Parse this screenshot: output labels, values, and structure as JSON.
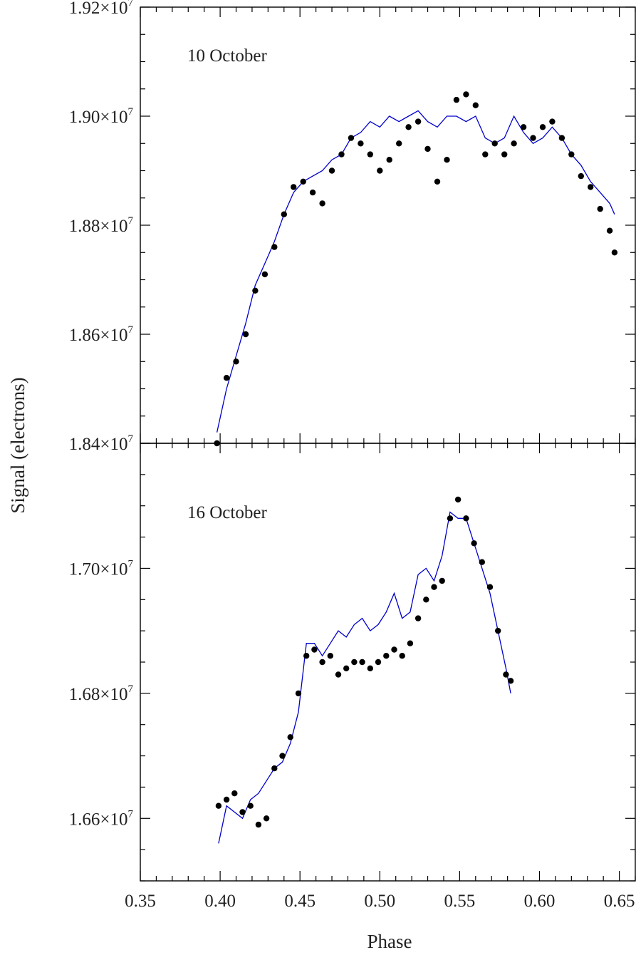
{
  "chart_data": [
    {
      "type": "scatter",
      "panel_label": "10 October",
      "xlabel": "Phase",
      "ylabel": "Signal (electrons)",
      "xlim": [
        0.35,
        0.66
      ],
      "ylim": [
        18400000,
        19200000
      ],
      "x_ticks": [
        0.35,
        0.4,
        0.45,
        0.5,
        0.55,
        0.6,
        0.65
      ],
      "y_ticks": [
        {
          "value": 18400000,
          "mantissa": "1.84",
          "exponent": "7"
        },
        {
          "value": 18600000,
          "mantissa": "1.86",
          "exponent": "7"
        },
        {
          "value": 18800000,
          "mantissa": "1.88",
          "exponent": "7"
        },
        {
          "value": 19000000,
          "mantissa": "1.90",
          "exponent": "7"
        },
        {
          "value": 19200000,
          "mantissa": "1.92",
          "exponent": "7"
        }
      ],
      "series": [
        {
          "kind": "points",
          "color": "#000000",
          "x": [
            0.398,
            0.404,
            0.41,
            0.416,
            0.422,
            0.428,
            0.434,
            0.44,
            0.446,
            0.452,
            0.458,
            0.464,
            0.47,
            0.476,
            0.482,
            0.488,
            0.494,
            0.5,
            0.506,
            0.512,
            0.518,
            0.524,
            0.53,
            0.536,
            0.542,
            0.548,
            0.554,
            0.56,
            0.566,
            0.572,
            0.578,
            0.584,
            0.59,
            0.596,
            0.602,
            0.608,
            0.614,
            0.62,
            0.626,
            0.632,
            0.638,
            0.644,
            0.647
          ],
          "y": [
            18400000,
            18520000,
            18550000,
            18600000,
            18680000,
            18710000,
            18760000,
            18820000,
            18870000,
            18880000,
            18860000,
            18840000,
            18900000,
            18930000,
            18960000,
            18950000,
            18930000,
            18900000,
            18920000,
            18950000,
            18980000,
            18990000,
            18940000,
            18880000,
            18920000,
            19030000,
            19040000,
            19020000,
            18930000,
            18950000,
            18930000,
            18950000,
            18980000,
            18960000,
            18980000,
            18990000,
            18960000,
            18930000,
            18890000,
            18870000,
            18830000,
            18790000,
            18750000
          ]
        },
        {
          "kind": "line",
          "color": "#0000cc",
          "x": [
            0.398,
            0.404,
            0.41,
            0.416,
            0.422,
            0.428,
            0.434,
            0.44,
            0.446,
            0.452,
            0.458,
            0.464,
            0.47,
            0.476,
            0.482,
            0.488,
            0.494,
            0.5,
            0.506,
            0.512,
            0.518,
            0.524,
            0.53,
            0.536,
            0.542,
            0.548,
            0.554,
            0.56,
            0.566,
            0.572,
            0.578,
            0.584,
            0.59,
            0.596,
            0.602,
            0.608,
            0.614,
            0.62,
            0.626,
            0.632,
            0.638,
            0.644,
            0.647
          ],
          "y": [
            18420000,
            18500000,
            18560000,
            18620000,
            18690000,
            18730000,
            18770000,
            18820000,
            18860000,
            18880000,
            18890000,
            18900000,
            18920000,
            18930000,
            18960000,
            18970000,
            18990000,
            18980000,
            19000000,
            18990000,
            19000000,
            19010000,
            18990000,
            18980000,
            19000000,
            19000000,
            18990000,
            19000000,
            18960000,
            18950000,
            18960000,
            19000000,
            18970000,
            18950000,
            18960000,
            18980000,
            18960000,
            18930000,
            18910000,
            18880000,
            18860000,
            18840000,
            18820000
          ]
        }
      ]
    },
    {
      "type": "scatter",
      "panel_label": "16 October",
      "xlabel": "Phase",
      "ylabel": "Signal (electrons)",
      "xlim": [
        0.35,
        0.66
      ],
      "ylim": [
        16500000,
        17200000
      ],
      "x_ticks": [
        0.35,
        0.4,
        0.45,
        0.5,
        0.55,
        0.6,
        0.65
      ],
      "x_tick_labels": [
        "0.35",
        "0.40",
        "0.45",
        "0.50",
        "0.55",
        "0.60",
        "0.65"
      ],
      "y_ticks": [
        {
          "value": 16600000,
          "mantissa": "1.66",
          "exponent": "7"
        },
        {
          "value": 16800000,
          "mantissa": "1.68",
          "exponent": "7"
        },
        {
          "value": 17000000,
          "mantissa": "1.70",
          "exponent": "7"
        }
      ],
      "series": [
        {
          "kind": "points",
          "color": "#000000",
          "x": [
            0.399,
            0.404,
            0.409,
            0.414,
            0.419,
            0.424,
            0.429,
            0.434,
            0.439,
            0.444,
            0.449,
            0.454,
            0.459,
            0.464,
            0.469,
            0.474,
            0.479,
            0.484,
            0.489,
            0.494,
            0.499,
            0.504,
            0.509,
            0.514,
            0.519,
            0.524,
            0.529,
            0.534,
            0.539,
            0.544,
            0.549,
            0.554,
            0.559,
            0.564,
            0.569,
            0.574,
            0.579,
            0.582
          ],
          "y": [
            16620000,
            16630000,
            16640000,
            16610000,
            16620000,
            16590000,
            16600000,
            16680000,
            16700000,
            16730000,
            16800000,
            16860000,
            16870000,
            16850000,
            16860000,
            16830000,
            16840000,
            16850000,
            16850000,
            16840000,
            16850000,
            16860000,
            16870000,
            16860000,
            16880000,
            16920000,
            16950000,
            16970000,
            16980000,
            17080000,
            17110000,
            17080000,
            17040000,
            17010000,
            16970000,
            16900000,
            16830000,
            16820000
          ]
        },
        {
          "kind": "line",
          "color": "#0000cc",
          "x": [
            0.399,
            0.404,
            0.409,
            0.414,
            0.419,
            0.424,
            0.429,
            0.434,
            0.439,
            0.444,
            0.449,
            0.454,
            0.459,
            0.464,
            0.469,
            0.474,
            0.479,
            0.484,
            0.489,
            0.494,
            0.499,
            0.504,
            0.509,
            0.514,
            0.519,
            0.524,
            0.529,
            0.534,
            0.539,
            0.544,
            0.549,
            0.554,
            0.559,
            0.564,
            0.569,
            0.574,
            0.579,
            0.582
          ],
          "y": [
            16560000,
            16620000,
            16610000,
            16600000,
            16630000,
            16640000,
            16660000,
            16680000,
            16690000,
            16720000,
            16770000,
            16880000,
            16880000,
            16860000,
            16880000,
            16900000,
            16890000,
            16910000,
            16920000,
            16900000,
            16910000,
            16930000,
            16960000,
            16920000,
            16930000,
            16990000,
            17000000,
            16980000,
            17020000,
            17090000,
            17080000,
            17080000,
            17040000,
            17000000,
            16960000,
            16900000,
            16840000,
            16800000
          ]
        }
      ]
    }
  ]
}
